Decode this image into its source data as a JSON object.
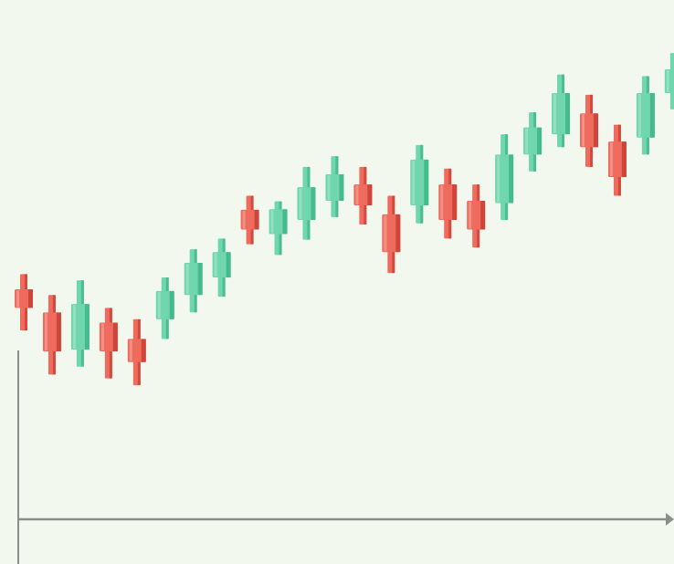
{
  "chart_data": {
    "type": "candlestick",
    "title": "",
    "xlabel": "",
    "ylabel": "",
    "ylim": [
      0,
      100
    ],
    "grid": false,
    "legend": "none",
    "colors": {
      "up": "#6fd6ad",
      "up_shade": "#3eb585",
      "down": "#ee6b5e",
      "down_shade": "#c93e33",
      "axis": "#8a8f8a",
      "background": "#f3f8ef"
    },
    "candles": [
      {
        "index": 1,
        "direction": "down",
        "open": 48.7,
        "close": 45.4,
        "high": 51.4,
        "low": 41.4
      },
      {
        "index": 2,
        "direction": "down",
        "open": 44.6,
        "close": 37.7,
        "high": 47.7,
        "low": 33.6
      },
      {
        "index": 3,
        "direction": "up",
        "open": 38.0,
        "close": 46.1,
        "high": 50.3,
        "low": 35.0
      },
      {
        "index": 4,
        "direction": "down",
        "open": 42.8,
        "close": 37.7,
        "high": 45.4,
        "low": 32.9
      },
      {
        "index": 5,
        "direction": "down",
        "open": 39.9,
        "close": 35.8,
        "high": 43.4,
        "low": 31.7
      },
      {
        "index": 6,
        "direction": "up",
        "open": 43.4,
        "close": 48.4,
        "high": 50.8,
        "low": 39.9
      },
      {
        "index": 7,
        "direction": "up",
        "open": 47.7,
        "close": 53.4,
        "high": 55.8,
        "low": 44.6
      },
      {
        "index": 8,
        "direction": "up",
        "open": 50.8,
        "close": 55.3,
        "high": 57.7,
        "low": 47.4
      },
      {
        "index": 9,
        "direction": "down",
        "open": 62.8,
        "close": 59.3,
        "high": 65.3,
        "low": 56.7
      },
      {
        "index": 10,
        "direction": "up",
        "open": 58.5,
        "close": 62.9,
        "high": 64.3,
        "low": 54.8
      },
      {
        "index": 11,
        "direction": "up",
        "open": 61.0,
        "close": 66.8,
        "high": 70.4,
        "low": 57.5
      },
      {
        "index": 12,
        "direction": "up",
        "open": 64.4,
        "close": 69.1,
        "high": 72.3,
        "low": 61.5
      },
      {
        "index": 13,
        "direction": "down",
        "open": 67.3,
        "close": 63.6,
        "high": 70.4,
        "low": 60.2
      },
      {
        "index": 14,
        "direction": "down",
        "open": 62.0,
        "close": 55.3,
        "high": 65.3,
        "low": 51.6
      },
      {
        "index": 15,
        "direction": "up",
        "open": 63.6,
        "close": 71.7,
        "high": 74.3,
        "low": 60.4
      },
      {
        "index": 16,
        "direction": "down",
        "open": 67.3,
        "close": 61.0,
        "high": 70.1,
        "low": 57.7
      },
      {
        "index": 17,
        "direction": "down",
        "open": 64.4,
        "close": 59.3,
        "high": 67.3,
        "low": 56.1
      },
      {
        "index": 18,
        "direction": "up",
        "open": 64.0,
        "close": 72.6,
        "high": 76.2,
        "low": 61.0
      },
      {
        "index": 19,
        "direction": "up",
        "open": 72.6,
        "close": 77.4,
        "high": 80.1,
        "low": 69.6
      },
      {
        "index": 20,
        "direction": "up",
        "open": 76.2,
        "close": 83.5,
        "high": 86.8,
        "low": 73.9
      },
      {
        "index": 21,
        "direction": "down",
        "open": 79.9,
        "close": 73.9,
        "high": 83.2,
        "low": 70.4
      },
      {
        "index": 22,
        "direction": "down",
        "open": 74.9,
        "close": 68.6,
        "high": 77.9,
        "low": 65.3
      },
      {
        "index": 23,
        "direction": "up",
        "open": 75.6,
        "close": 83.5,
        "high": 86.5,
        "low": 72.6
      },
      {
        "index": 24,
        "direction": "up",
        "open": 83.5,
        "close": 87.7,
        "high": 90.6,
        "low": 80.6
      }
    ]
  }
}
